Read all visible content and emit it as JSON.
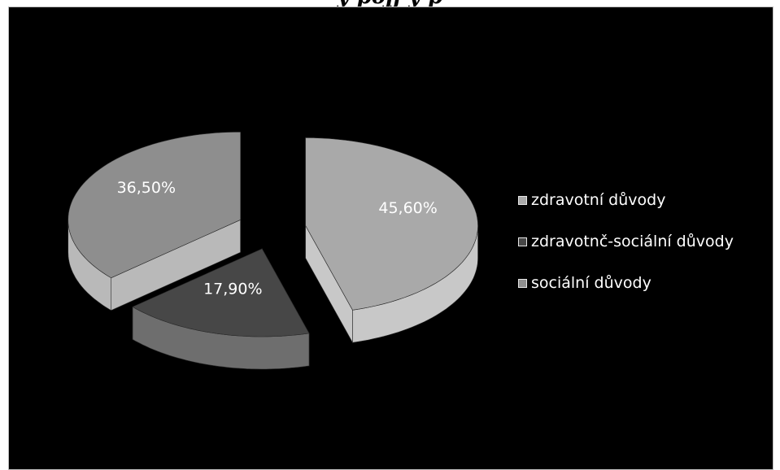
{
  "chart_data": {
    "type": "pie",
    "title": "",
    "categories": [
      "zdravotní důvody",
      "zdravotnč-sociální důvody",
      "sociální důvody"
    ],
    "values": [
      45.6,
      17.9,
      36.5
    ],
    "value_labels": [
      "45,60%",
      "17,90%",
      "36,50%"
    ],
    "legend_position": "right",
    "exploded": true,
    "three_d": true,
    "colors": [
      "#a9a9a9",
      "#474747",
      "#8e8e8e"
    ],
    "side_colors": [
      "#c8c8c8",
      "#6e6e6e",
      "#b9b9b9"
    ]
  },
  "page": {
    "cropped_title": "y pojj                                    y      p"
  }
}
